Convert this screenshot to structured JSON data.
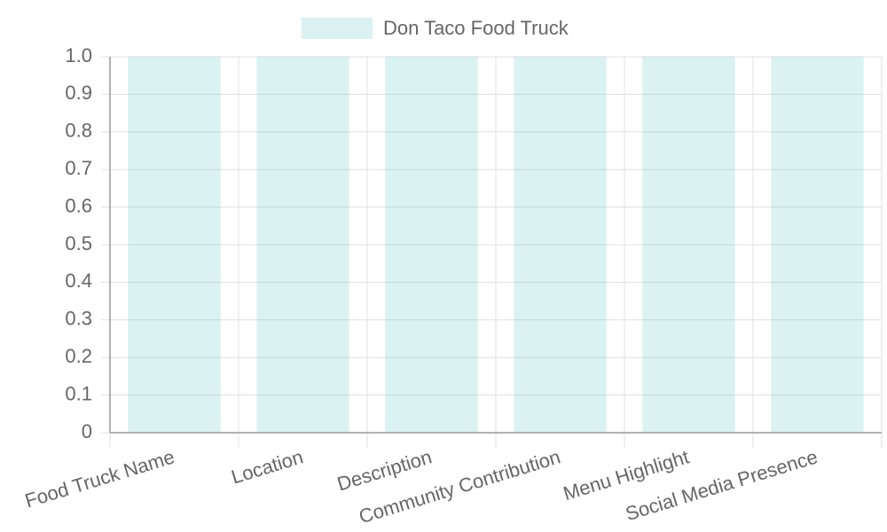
{
  "chart_data": {
    "type": "bar",
    "categories": [
      "Food Truck Name",
      "Location",
      "Description",
      "Community Contribution",
      "Menu Highlight",
      "Social Media Presence"
    ],
    "series": [
      {
        "name": "Don Taco Food Truck",
        "color": "rgba(75, 192, 192, 0.2)",
        "values": [
          1,
          1,
          1,
          1,
          1,
          1
        ]
      }
    ],
    "ylim": [
      0,
      1
    ],
    "yticks": [
      0,
      0.1,
      0.2,
      0.3,
      0.4,
      0.5,
      0.6,
      0.7,
      0.8,
      0.9,
      {
        "value": 1,
        "label": "1.0"
      }
    ],
    "grid": true,
    "legend": "top"
  }
}
